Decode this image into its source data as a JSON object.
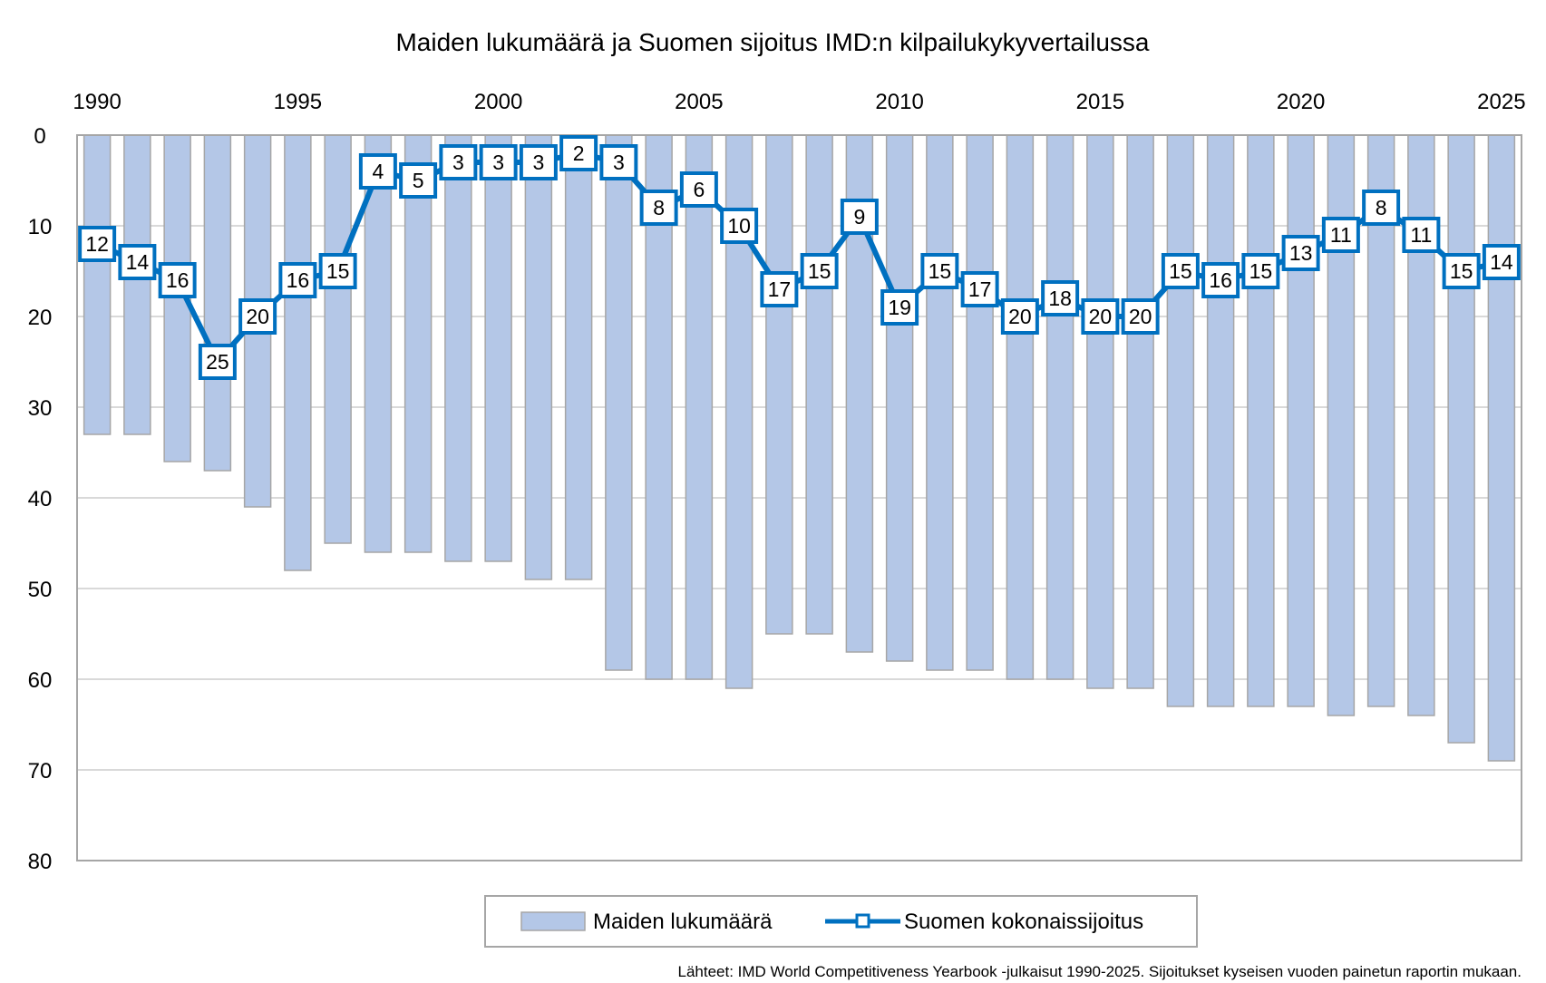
{
  "chart_data": {
    "type": "bar",
    "title": "Maiden lukumäärä ja Suomen sijoitus IMD:n kilpailukykyvertailussa",
    "categories": [
      1990,
      1991,
      1992,
      1993,
      1994,
      1995,
      1996,
      1997,
      1998,
      1999,
      2000,
      2001,
      2002,
      2003,
      2004,
      2005,
      2006,
      2007,
      2008,
      2009,
      2010,
      2011,
      2012,
      2013,
      2014,
      2015,
      2016,
      2017,
      2018,
      2019,
      2020,
      2021,
      2022,
      2023,
      2024,
      2025
    ],
    "x_tick_labels": [
      "1990",
      "1995",
      "2000",
      "2005",
      "2010",
      "2015",
      "2020",
      "2025"
    ],
    "y_tick_labels": [
      "0",
      "10",
      "20",
      "30",
      "40",
      "50",
      "60",
      "70",
      "80"
    ],
    "ylim": [
      0,
      80
    ],
    "y_axis_reversed": true,
    "series": [
      {
        "name": "Maiden lukumäärä",
        "type": "bar",
        "color": "#b4c7e7",
        "values": [
          33,
          33,
          36,
          37,
          41,
          48,
          45,
          46,
          46,
          47,
          47,
          49,
          49,
          59,
          60,
          60,
          61,
          55,
          55,
          57,
          58,
          59,
          59,
          60,
          60,
          61,
          61,
          63,
          63,
          63,
          63,
          64,
          63,
          64,
          67,
          69
        ]
      },
      {
        "name": "Suomen kokonaissijoitus",
        "type": "line",
        "color": "#0070c0",
        "values": [
          12,
          14,
          16,
          25,
          20,
          16,
          15,
          4,
          5,
          3,
          3,
          3,
          2,
          3,
          8,
          6,
          10,
          17,
          15,
          9,
          19,
          15,
          17,
          20,
          18,
          20,
          20,
          15,
          16,
          15,
          13,
          11,
          8,
          11,
          15,
          14
        ]
      }
    ],
    "legend": [
      "Maiden lukumäärä",
      "Suomen kokonaissijoitus"
    ],
    "legend_position": "bottom",
    "grid": true
  },
  "source_note": "Lähteet: IMD World Competitiveness Yearbook -julkaisut 1990-2025. Sijoitukset kyseisen vuoden painetun raportin mukaan."
}
